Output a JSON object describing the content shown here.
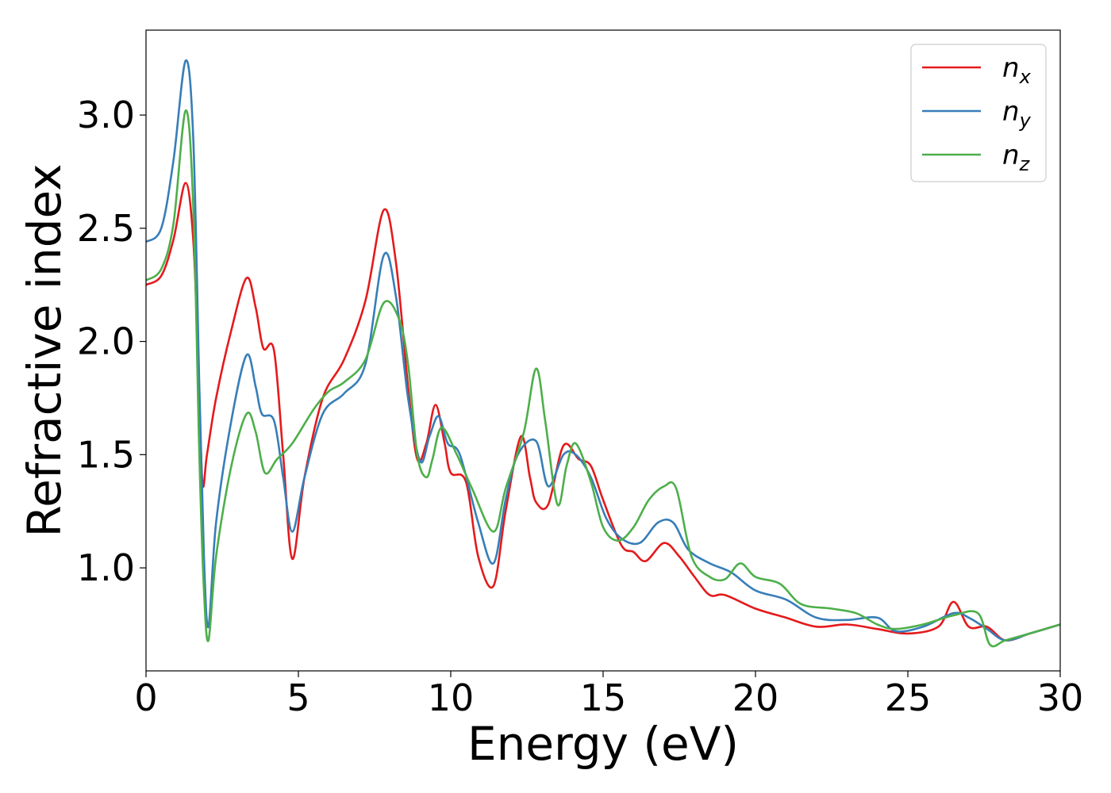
{
  "chart_data": {
    "type": "line",
    "title": "",
    "xlabel": "Energy (eV)",
    "ylabel": "Refractive index",
    "xlim": [
      0,
      30
    ],
    "ylim": [
      0.545,
      3.375
    ],
    "xticks": [
      0,
      5,
      10,
      15,
      20,
      25,
      30
    ],
    "xtick_labels": [
      "0",
      "5",
      "10",
      "15",
      "20",
      "25",
      "30"
    ],
    "yticks": [
      1.0,
      1.5,
      2.0,
      2.5,
      3.0
    ],
    "ytick_labels": [
      "1.0",
      "1.5",
      "2.0",
      "2.5",
      "3.0"
    ],
    "grid": false,
    "legend_position": "top-right",
    "series": [
      {
        "name": "n",
        "subscript": "x",
        "color": "#e41a1c",
        "points": [
          [
            0,
            2.25
          ],
          [
            0.5,
            2.29
          ],
          [
            0.9,
            2.45
          ],
          [
            1.3,
            2.7
          ],
          [
            1.55,
            2.45
          ],
          [
            1.7,
            1.95
          ],
          [
            1.85,
            1.38
          ],
          [
            2.0,
            1.5
          ],
          [
            2.3,
            1.75
          ],
          [
            2.8,
            2.05
          ],
          [
            3.3,
            2.28
          ],
          [
            3.6,
            2.15
          ],
          [
            3.85,
            1.97
          ],
          [
            4.2,
            1.96
          ],
          [
            4.5,
            1.5
          ],
          [
            4.8,
            1.04
          ],
          [
            5.2,
            1.4
          ],
          [
            5.8,
            1.75
          ],
          [
            6.5,
            1.92
          ],
          [
            7.2,
            2.18
          ],
          [
            7.8,
            2.58
          ],
          [
            8.2,
            2.35
          ],
          [
            8.6,
            1.8
          ],
          [
            8.9,
            1.48
          ],
          [
            9.2,
            1.55
          ],
          [
            9.5,
            1.72
          ],
          [
            9.8,
            1.55
          ],
          [
            10.0,
            1.42
          ],
          [
            10.5,
            1.38
          ],
          [
            10.9,
            1.05
          ],
          [
            11.4,
            0.92
          ],
          [
            11.8,
            1.25
          ],
          [
            12.3,
            1.58
          ],
          [
            12.6,
            1.4
          ],
          [
            12.8,
            1.29
          ],
          [
            13.2,
            1.28
          ],
          [
            13.7,
            1.54
          ],
          [
            14.2,
            1.48
          ],
          [
            14.6,
            1.45
          ],
          [
            15.0,
            1.3
          ],
          [
            15.6,
            1.1
          ],
          [
            16.0,
            1.07
          ],
          [
            16.4,
            1.03
          ],
          [
            17.0,
            1.11
          ],
          [
            17.5,
            1.05
          ],
          [
            18.0,
            0.96
          ],
          [
            18.5,
            0.88
          ],
          [
            19.0,
            0.88
          ],
          [
            20.0,
            0.82
          ],
          [
            21.0,
            0.78
          ],
          [
            22.0,
            0.74
          ],
          [
            23.0,
            0.75
          ],
          [
            24.0,
            0.73
          ],
          [
            25.0,
            0.71
          ],
          [
            26.0,
            0.74
          ],
          [
            26.5,
            0.85
          ],
          [
            27.0,
            0.74
          ],
          [
            27.6,
            0.74
          ],
          [
            28.2,
            0.68
          ],
          [
            29.0,
            0.71
          ],
          [
            30.0,
            0.75
          ]
        ]
      },
      {
        "name": "n",
        "subscript": "y",
        "color": "#377eb8",
        "points": [
          [
            0,
            2.44
          ],
          [
            0.5,
            2.5
          ],
          [
            0.9,
            2.8
          ],
          [
            1.3,
            3.24
          ],
          [
            1.55,
            2.9
          ],
          [
            1.75,
            1.8
          ],
          [
            1.9,
            1.05
          ],
          [
            2.05,
            0.74
          ],
          [
            2.3,
            1.2
          ],
          [
            2.8,
            1.65
          ],
          [
            3.3,
            1.94
          ],
          [
            3.6,
            1.8
          ],
          [
            3.8,
            1.68
          ],
          [
            4.2,
            1.65
          ],
          [
            4.5,
            1.4
          ],
          [
            4.8,
            1.16
          ],
          [
            5.2,
            1.4
          ],
          [
            5.8,
            1.68
          ],
          [
            6.5,
            1.77
          ],
          [
            7.2,
            1.9
          ],
          [
            7.8,
            2.38
          ],
          [
            8.2,
            2.2
          ],
          [
            8.6,
            1.75
          ],
          [
            9.0,
            1.47
          ],
          [
            9.3,
            1.58
          ],
          [
            9.6,
            1.67
          ],
          [
            9.9,
            1.55
          ],
          [
            10.3,
            1.5
          ],
          [
            10.9,
            1.2
          ],
          [
            11.4,
            1.02
          ],
          [
            11.8,
            1.3
          ],
          [
            12.2,
            1.5
          ],
          [
            12.8,
            1.56
          ],
          [
            13.2,
            1.36
          ],
          [
            13.7,
            1.5
          ],
          [
            14.1,
            1.5
          ],
          [
            14.6,
            1.4
          ],
          [
            15.1,
            1.22
          ],
          [
            15.6,
            1.13
          ],
          [
            16.2,
            1.11
          ],
          [
            16.8,
            1.2
          ],
          [
            17.3,
            1.2
          ],
          [
            17.8,
            1.08
          ],
          [
            18.5,
            1.02
          ],
          [
            19.2,
            0.98
          ],
          [
            20.0,
            0.9
          ],
          [
            21.0,
            0.86
          ],
          [
            22.0,
            0.78
          ],
          [
            23.0,
            0.77
          ],
          [
            24.0,
            0.78
          ],
          [
            24.6,
            0.72
          ],
          [
            25.5,
            0.74
          ],
          [
            26.5,
            0.8
          ],
          [
            27.0,
            0.78
          ],
          [
            27.6,
            0.73
          ],
          [
            28.2,
            0.68
          ],
          [
            29.0,
            0.71
          ],
          [
            30.0,
            0.75
          ]
        ]
      },
      {
        "name": "n",
        "subscript": "z",
        "color": "#4daf4a",
        "points": [
          [
            0,
            2.27
          ],
          [
            0.5,
            2.32
          ],
          [
            0.9,
            2.52
          ],
          [
            1.3,
            3.02
          ],
          [
            1.55,
            2.6
          ],
          [
            1.75,
            1.5
          ],
          [
            1.9,
            0.9
          ],
          [
            2.05,
            0.68
          ],
          [
            2.3,
            1.05
          ],
          [
            2.8,
            1.45
          ],
          [
            3.3,
            1.68
          ],
          [
            3.6,
            1.6
          ],
          [
            3.9,
            1.42
          ],
          [
            4.3,
            1.48
          ],
          [
            4.8,
            1.55
          ],
          [
            5.5,
            1.7
          ],
          [
            6.0,
            1.78
          ],
          [
            6.5,
            1.82
          ],
          [
            7.2,
            1.92
          ],
          [
            7.8,
            2.17
          ],
          [
            8.3,
            2.1
          ],
          [
            8.6,
            1.9
          ],
          [
            8.9,
            1.5
          ],
          [
            9.2,
            1.4
          ],
          [
            9.4,
            1.48
          ],
          [
            9.7,
            1.62
          ],
          [
            10.2,
            1.5
          ],
          [
            10.7,
            1.35
          ],
          [
            11.4,
            1.16
          ],
          [
            11.8,
            1.35
          ],
          [
            12.4,
            1.6
          ],
          [
            12.8,
            1.88
          ],
          [
            13.1,
            1.65
          ],
          [
            13.5,
            1.28
          ],
          [
            13.8,
            1.45
          ],
          [
            14.1,
            1.55
          ],
          [
            14.6,
            1.38
          ],
          [
            15.0,
            1.18
          ],
          [
            15.5,
            1.12
          ],
          [
            16.0,
            1.18
          ],
          [
            16.5,
            1.3
          ],
          [
            17.0,
            1.36
          ],
          [
            17.4,
            1.35
          ],
          [
            17.9,
            1.05
          ],
          [
            18.5,
            0.96
          ],
          [
            19.0,
            0.95
          ],
          [
            19.5,
            1.02
          ],
          [
            20.0,
            0.96
          ],
          [
            20.8,
            0.93
          ],
          [
            21.5,
            0.84
          ],
          [
            22.5,
            0.82
          ],
          [
            23.3,
            0.8
          ],
          [
            24.0,
            0.75
          ],
          [
            24.6,
            0.73
          ],
          [
            25.5,
            0.75
          ],
          [
            26.5,
            0.79
          ],
          [
            27.3,
            0.8
          ],
          [
            27.7,
            0.66
          ],
          [
            28.2,
            0.68
          ],
          [
            29.0,
            0.71
          ],
          [
            30.0,
            0.75
          ]
        ]
      }
    ]
  }
}
